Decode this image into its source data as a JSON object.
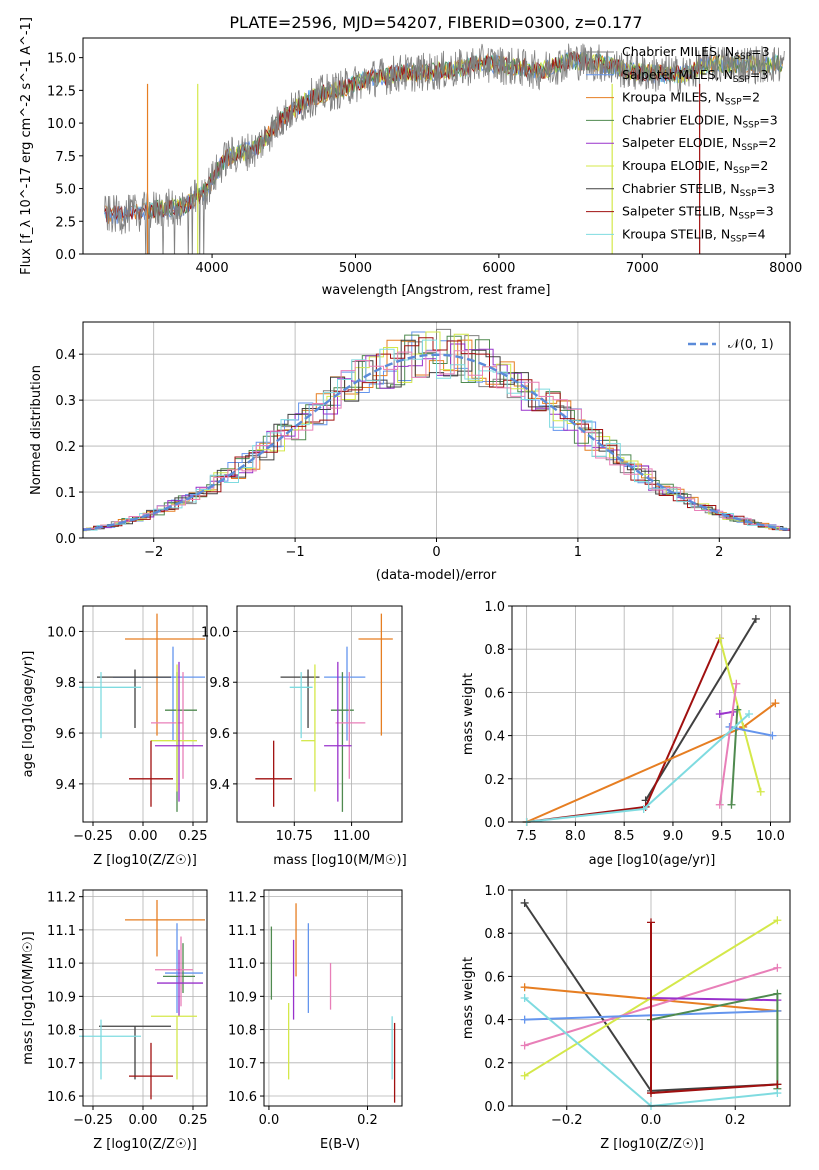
{
  "colors": {
    "chabrier_miles": "#808080",
    "salpeter_miles": "#6495ed",
    "kroupa_miles": "#e67e22",
    "chabrier_elodie": "#4f8a4f",
    "salpeter_elodie": "#9932cc",
    "kroupa_elodie": "#d4e84a",
    "chabrier_stelib": "#404040",
    "salpeter_stelib": "#a01010",
    "kroupa_stelib": "#7fdbe0",
    "pink": "#e87fb8"
  },
  "chart_data": [
    {
      "id": "spectrum",
      "type": "line",
      "title": "PLATE=2596, MJD=54207, FIBERID=0300, z=0.177",
      "xlabel": "wavelength [Angstrom, rest frame]",
      "ylabel": "Flux [f_λ 10^-17 erg cm^-2 s^-1 A^-1]",
      "xlim": [
        3100,
        8030
      ],
      "ylim": [
        0,
        16.5
      ],
      "xticks": [
        "4000",
        "5000",
        "6000",
        "7000",
        "8000"
      ],
      "yticks": [
        "0.0",
        "2.5",
        "5.0",
        "7.5",
        "10.0",
        "12.5",
        "15.0"
      ],
      "legend": [
        {
          "model": "Chabrier MILES",
          "n_ssp": "3"
        },
        {
          "model": "Salpeter MILES",
          "n_ssp": "3"
        },
        {
          "model": "Kroupa MILES",
          "n_ssp": "2"
        },
        {
          "model": "Chabrier ELODIE",
          "n_ssp": "3"
        },
        {
          "model": "Salpeter ELODIE",
          "n_ssp": "2"
        },
        {
          "model": "Kroupa ELODIE",
          "n_ssp": "2"
        },
        {
          "model": "Chabrier STELIB",
          "n_ssp": "3"
        },
        {
          "model": "Salpeter STELIB",
          "n_ssp": "3"
        },
        {
          "model": "Kroupa STELIB",
          "n_ssp": "4"
        }
      ],
      "data_x": [
        3250,
        3400,
        3600,
        3800,
        3950,
        4100,
        4300,
        4500,
        4700,
        4900,
        5100,
        5300,
        5500,
        5700,
        5900,
        6100,
        6300,
        6500,
        6700,
        6900,
        7100,
        7300,
        7450
      ],
      "data_y": [
        3.0,
        3.0,
        3.4,
        3.6,
        4.8,
        7.4,
        8.0,
        10.5,
        12.0,
        12.6,
        13.4,
        13.8,
        13.9,
        14.1,
        14.6,
        14.3,
        14.0,
        14.8,
        14.6,
        14.0,
        13.8,
        13.7,
        14.5
      ]
    },
    {
      "id": "residuals",
      "type": "histogram",
      "xlabel": "(data-model)/error",
      "ylabel": "Normed distribution",
      "xlim": [
        -2.5,
        2.5
      ],
      "ylim": [
        0,
        0.47
      ],
      "xticks": [
        "−2",
        "−1",
        "0",
        "1",
        "2"
      ],
      "yticks": [
        "0.0",
        "0.1",
        "0.2",
        "0.3",
        "0.4"
      ],
      "legend": "𝒩(0, 1)"
    },
    {
      "id": "age-vs-z",
      "type": "errorbar",
      "xlabel": "Z [log10(Z/Z☉)]",
      "ylabel": "age [log10(age/yr)]",
      "xlim": [
        -0.3,
        0.32
      ],
      "ylim": [
        9.25,
        10.1
      ],
      "xticks": [
        "−0.25",
        "0.00",
        "0.25"
      ],
      "yticks": [
        "9.4",
        "9.6",
        "9.8",
        "10.0"
      ]
    },
    {
      "id": "age-vs-mass",
      "type": "errorbar",
      "xlabel": "mass [log10(M/M☉)]",
      "xlim": [
        10.5,
        11.22
      ],
      "ylim": [
        9.25,
        10.1
      ],
      "xticks": [
        "10.75",
        "11.00"
      ],
      "yticks": [
        "9.4",
        "9.6",
        "9.8",
        "10.0"
      ]
    },
    {
      "id": "massweight-vs-age",
      "type": "line",
      "xlabel": "age [log10(age/yr)]",
      "ylabel": "mass weight",
      "xlim": [
        7.35,
        10.2
      ],
      "ylim": [
        0,
        1.0
      ],
      "xticks": [
        "7.5",
        "8.0",
        "8.5",
        "9.0",
        "9.5",
        "10.0"
      ],
      "yticks": [
        "0.0",
        "0.2",
        "0.4",
        "0.6",
        "0.8",
        "1.0"
      ]
    },
    {
      "id": "mass-vs-z",
      "type": "errorbar",
      "xlabel": "Z [log10(Z/Z☉)]",
      "ylabel": "mass [log10(M/M☉)]",
      "xlim": [
        -0.3,
        0.32
      ],
      "ylim": [
        10.57,
        11.22
      ],
      "xticks": [
        "−0.25",
        "0.00",
        "0.25"
      ],
      "yticks": [
        "10.6",
        "10.7",
        "10.8",
        "10.9",
        "11.0",
        "11.1",
        "11.2"
      ]
    },
    {
      "id": "mass-vs-ebv",
      "type": "errorbar",
      "xlabel": "E(B-V)",
      "xlim": [
        -0.01,
        0.27
      ],
      "ylim": [
        10.57,
        11.22
      ],
      "xticks": [
        "0.0",
        "0.2"
      ],
      "yticks": [
        "10.6",
        "10.7",
        "10.8",
        "10.9",
        "11.0",
        "11.1",
        "11.2"
      ]
    },
    {
      "id": "massweight-vs-z",
      "type": "line",
      "xlabel": "Z [log10(Z/Z☉)]",
      "ylabel": "mass weight",
      "xlim": [
        -0.33,
        0.33
      ],
      "ylim": [
        0,
        1.0
      ],
      "xticks": [
        "−0.2",
        "0.0",
        "0.2"
      ],
      "yticks": [
        "0.0",
        "0.2",
        "0.4",
        "0.6",
        "0.8",
        "1.0"
      ]
    }
  ]
}
